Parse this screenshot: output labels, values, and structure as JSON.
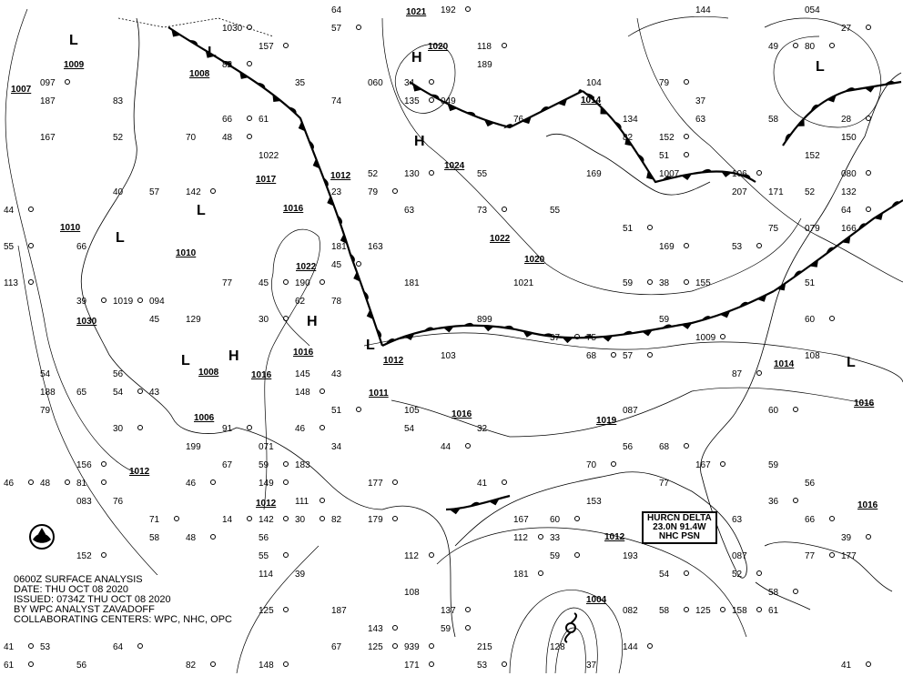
{
  "caption": {
    "line1": "0600Z SURFACE ANALYSIS",
    "line2": "DATE: THU OCT 08 2020",
    "line3": "ISSUED: 0734Z THU OCT 08 2020",
    "line4": "BY WPC ANALYST ZAVADOFF",
    "line5": "COLLABORATING CENTERS: WPC, NHC, OPC"
  },
  "hurricane_box": {
    "line1": "HURCN DELTA",
    "line2": "23.0N 91.4W",
    "line3": "NHC PSN"
  },
  "isobar_labels": [
    "1007",
    "1009",
    "1008",
    "1010",
    "1010",
    "1030",
    "1008",
    "1006",
    "1012",
    "1012",
    "1016",
    "1016",
    "1022",
    "1016",
    "1012",
    "1017",
    "1021",
    "1020",
    "1024",
    "1022",
    "1020",
    "1014",
    "1012",
    "1011",
    "1016",
    "1019",
    "1014",
    "1016",
    "1016",
    "1012",
    "1004"
  ],
  "pressure_centers": [
    "L",
    "L",
    "L",
    "L",
    "L",
    "L",
    "L",
    "L",
    "H",
    "H",
    "H",
    "H"
  ],
  "stations": [
    "148",
    "51",
    "143",
    "63",
    "125",
    "56",
    "46",
    "087",
    "44",
    "083",
    "41",
    "167",
    "27",
    "1021",
    "30",
    "167",
    "28",
    "087",
    "30",
    "079",
    "30",
    "049",
    "48",
    "899",
    "53",
    "1007",
    "1009",
    "58",
    "64",
    "071",
    "57",
    "105",
    "51",
    "39",
    "111",
    "37",
    "190",
    "37",
    "192",
    "35",
    "38",
    "193",
    "59",
    "145",
    "58",
    "61",
    "939",
    "65",
    "152",
    "34",
    "135",
    "32",
    "113",
    "56",
    "59",
    "082",
    "53",
    "108",
    "45",
    "134",
    "46",
    "188",
    "39",
    "215",
    "34",
    "207",
    "37",
    "177",
    "41",
    "152",
    "48",
    "054",
    "55",
    "171",
    "51",
    "104",
    "49",
    "129",
    "14",
    "52",
    "46",
    "23",
    "48",
    "199",
    "45",
    "181",
    "41",
    "187",
    "36",
    "1022",
    "55",
    "108",
    "44",
    "183",
    "39",
    "52",
    "148",
    "094",
    "54",
    "59",
    "54",
    "43",
    "144",
    "53",
    "142",
    "54",
    "156",
    "59",
    "179",
    "45",
    "167",
    "52",
    "61",
    "187",
    "58",
    "181",
    "51",
    "169",
    "60",
    "163",
    "79",
    "132",
    "60",
    "144",
    "1030",
    "67",
    "097",
    "55",
    "112",
    "43",
    "130",
    "40",
    "171",
    "56",
    "118",
    "62",
    "152",
    "58",
    "137",
    "63",
    "60",
    "189",
    "68",
    "155",
    "80",
    "78",
    "66",
    "060",
    "57",
    "63",
    "59",
    "33",
    "080",
    "67",
    "112",
    "56",
    "125",
    "66",
    "142",
    "55",
    "181",
    "54",
    "177",
    "57",
    "1019",
    "75",
    "169",
    "70",
    "59",
    "56",
    "125",
    "64",
    "70",
    "150",
    "64",
    "74",
    "149",
    "76",
    "82",
    "166",
    "66",
    "153",
    "71",
    "61",
    "81",
    "76",
    "106",
    "128",
    "82",
    "82",
    "91",
    "103",
    "79",
    "79",
    "87",
    "114",
    "77",
    "82",
    "157",
    "83",
    "158",
    "77",
    "68",
    "75",
    "52",
    "77",
    "73"
  ],
  "colors": {
    "ink": "#000000",
    "background": "#ffffff"
  },
  "icons": [
    "noaa-logo-icon",
    "hurricane-symbol-icon",
    "cold-front-icon",
    "warm-front-icon",
    "stationary-front-icon"
  ]
}
